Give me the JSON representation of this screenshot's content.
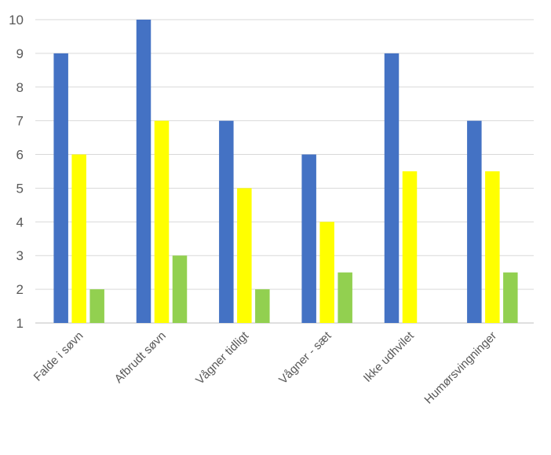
{
  "chart_data": {
    "type": "bar",
    "title": "",
    "xlabel": "",
    "ylabel": "",
    "ylim": [
      1,
      10
    ],
    "yticks": [
      1,
      2,
      3,
      4,
      5,
      6,
      7,
      8,
      9,
      10
    ],
    "grid": true,
    "legend": "none",
    "categories": [
      "Falde i søvn",
      "Afbrudt søvn",
      "Vågner tidligt",
      "Vågner - sæt",
      "Ikke udhvilet",
      "Humørsvingninger"
    ],
    "series": [
      {
        "color": "#4472C4",
        "values": [
          9,
          10,
          7,
          6,
          9,
          7
        ]
      },
      {
        "color": "#FFFF00",
        "values": [
          6,
          7,
          5,
          4,
          5.5,
          5.5
        ]
      },
      {
        "color": "#92D050",
        "values": [
          2,
          3,
          2,
          2.5,
          1,
          2.5
        ]
      }
    ]
  }
}
